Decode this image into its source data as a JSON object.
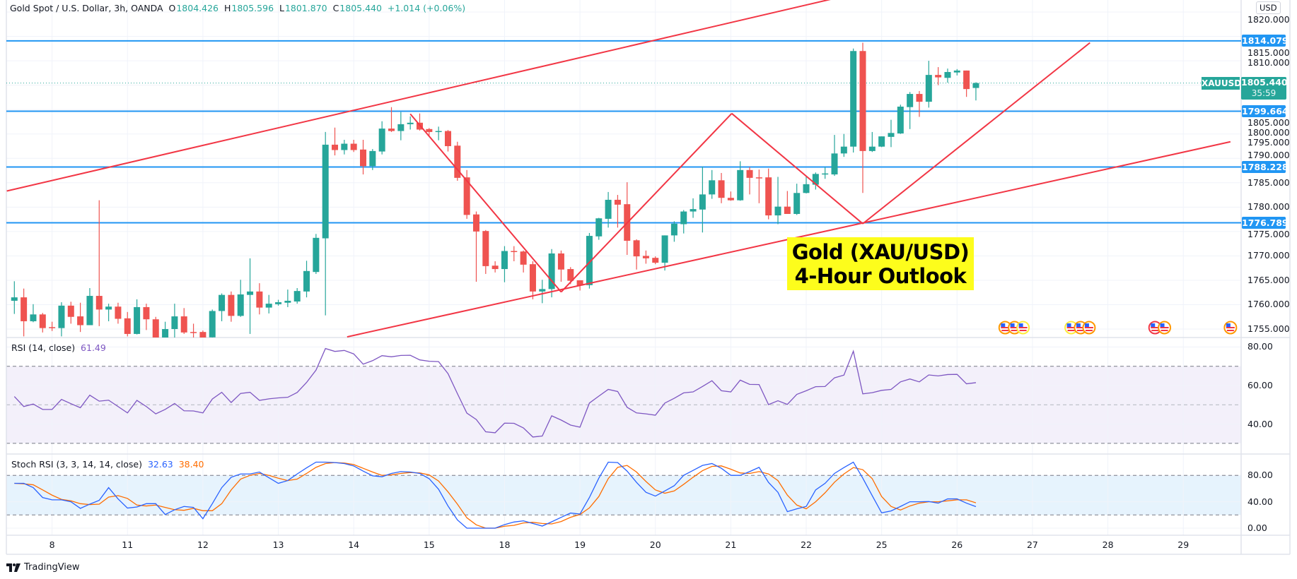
{
  "header": {
    "symbol_title": "Gold Spot / U.S. Dollar, 3h, OANDA",
    "open_label": "O",
    "open": "1804.426",
    "high_label": "H",
    "high": "1805.596",
    "low_label": "L",
    "low": "1801.870",
    "close_label": "C",
    "close": "1805.440",
    "change": "+1.014 (+0.06%)"
  },
  "colors": {
    "up": "#26a69a",
    "down": "#ef5350",
    "level_line": "#2196f3",
    "trend_line": "#f23645",
    "rsi_line": "#7e57c2",
    "stoch_k": "#2962ff",
    "stoch_d": "#ff6d00",
    "annotation_bg": "#fdfd1c"
  },
  "price_axis": {
    "currency": "USD",
    "ticks": [
      "1820.000",
      "1815.000",
      "1810.000",
      "1805.000",
      "1800.000",
      "1795.000",
      "1790.000",
      "1785.000",
      "1780.000",
      "1775.000",
      "1770.000",
      "1765.000",
      "1760.000",
      "1755.000"
    ],
    "levels": [
      "1814.079",
      "1799.664",
      "1788.228",
      "1776.789"
    ],
    "last_price": "1805.440",
    "countdown": "35:59",
    "symbol_tag": "XAUUSD"
  },
  "annotation": {
    "line1": "Gold (XAU/USD)",
    "line2": "4-Hour Outlook"
  },
  "events": [
    {
      "icon": "us-flag-icon",
      "ring": "#ff9800",
      "candle": 105.1
    },
    {
      "icon": "us-flag-icon",
      "ring": "#ff9800",
      "candle": 106.1
    },
    {
      "icon": "us-flag-icon",
      "ring": "#ffeb3b",
      "candle": 107.0
    },
    {
      "icon": "us-flag-icon",
      "ring": "#ffeb3b",
      "candle": 112.1
    },
    {
      "icon": "us-flag-icon",
      "ring": "#ff9800",
      "candle": 113.1
    },
    {
      "icon": "us-flag-icon",
      "ring": "#ff9800",
      "candle": 114.0
    },
    {
      "icon": "us-flag-icon",
      "ring": "#f23645",
      "candle": 121.0
    },
    {
      "icon": "us-flag-icon",
      "ring": "#ff9800",
      "candle": 122.0
    },
    {
      "icon": "us-flag-icon",
      "ring": "#ff9800",
      "candle": 129.0
    }
  ],
  "time_axis": {
    "ticks": [
      "8",
      "11",
      "12",
      "13",
      "14",
      "15",
      "18",
      "19",
      "20",
      "21",
      "22",
      "25",
      "26",
      "27",
      "28",
      "29"
    ]
  },
  "rsi": {
    "title": "RSI (14, close)",
    "value": "61.49",
    "ticks": [
      "80.00",
      "60.00",
      "40.00"
    ],
    "upper_band": 70,
    "middle_band": 50,
    "lower_band": 30
  },
  "stoch_rsi": {
    "title": "Stoch RSI (3, 3, 14, 14, close)",
    "k_value": "32.63",
    "d_value": "38.40",
    "ticks": [
      "80.00",
      "40.00",
      "0.00"
    ],
    "upper_band": 80,
    "lower_band": 20
  },
  "footer": {
    "brand": "TradingView"
  },
  "chart_data": [
    {
      "type": "candlestick",
      "title": "Gold Spot / U.S. Dollar, 3h, OANDA",
      "ylim": [
        1753.4,
        1821.4
      ],
      "ohlc": [
        [
          1760.8,
          1764.8,
          1758.1,
          1761.5
        ],
        [
          1761.5,
          1763.3,
          1753.5,
          1756.6
        ],
        [
          1756.6,
          1760.1,
          1756.4,
          1758.0
        ],
        [
          1758.0,
          1758.3,
          1754.3,
          1755.2
        ],
        [
          1755.4,
          1756.5,
          1754.6,
          1755.2
        ],
        [
          1755.2,
          1760.5,
          1753.5,
          1759.8
        ],
        [
          1759.8,
          1760.6,
          1756.1,
          1757.5
        ],
        [
          1757.6,
          1760.4,
          1754.4,
          1755.8
        ],
        [
          1755.8,
          1763.4,
          1755.8,
          1761.8
        ],
        [
          1761.8,
          1781.4,
          1755.6,
          1759.0
        ],
        [
          1759.0,
          1760.2,
          1756.6,
          1759.6
        ],
        [
          1759.6,
          1760.4,
          1756.1,
          1757.1
        ],
        [
          1757.2,
          1758.5,
          1753.5,
          1754.0
        ],
        [
          1754.0,
          1761.1,
          1753.9,
          1759.5
        ],
        [
          1759.5,
          1760.2,
          1754.8,
          1757.0
        ],
        [
          1757.0,
          1757.5,
          1752.5,
          1753.0
        ],
        [
          1753.2,
          1756.5,
          1752.5,
          1755.0
        ],
        [
          1755.0,
          1760.2,
          1753.0,
          1757.6
        ],
        [
          1757.6,
          1759.3,
          1754.0,
          1754.3
        ],
        [
          1754.4,
          1756.1,
          1753.0,
          1754.3
        ],
        [
          1754.4,
          1754.7,
          1752.5,
          1753.2
        ],
        [
          1753.3,
          1759.0,
          1752.8,
          1758.7
        ],
        [
          1758.7,
          1762.3,
          1756.6,
          1762.0
        ],
        [
          1762.0,
          1762.7,
          1756.5,
          1757.7
        ],
        [
          1757.7,
          1765.1,
          1757.5,
          1762.1
        ],
        [
          1762.0,
          1769.5,
          1754.0,
          1762.7
        ],
        [
          1762.7,
          1764.4,
          1758.0,
          1759.4
        ],
        [
          1759.4,
          1762.0,
          1758.2,
          1760.2
        ],
        [
          1760.1,
          1761.0,
          1759.8,
          1760.5
        ],
        [
          1760.4,
          1763.1,
          1759.5,
          1760.8
        ],
        [
          1760.65,
          1763.4,
          1760.2,
          1762.8
        ],
        [
          1762.7,
          1769.0,
          1761.5,
          1766.9
        ],
        [
          1766.7,
          1774.5,
          1766.3,
          1773.7
        ],
        [
          1773.6,
          1795.4,
          1757.8,
          1792.8
        ],
        [
          1792.8,
          1796.3,
          1790.6,
          1791.7
        ],
        [
          1791.7,
          1793.8,
          1790.8,
          1793.0
        ],
        [
          1793.0,
          1793.8,
          1791.3,
          1791.7
        ],
        [
          1791.8,
          1793.8,
          1786.7,
          1788.4
        ],
        [
          1788.4,
          1791.9,
          1787.6,
          1791.5
        ],
        [
          1791.4,
          1797.6,
          1790.8,
          1796.1
        ],
        [
          1796.1,
          1800.5,
          1795.4,
          1795.6
        ],
        [
          1795.6,
          1799.5,
          1793.7,
          1797.0
        ],
        [
          1797.0,
          1798.6,
          1795.9,
          1797.3
        ],
        [
          1797.3,
          1799.2,
          1795.7,
          1795.9
        ],
        [
          1796.0,
          1796.2,
          1794.7,
          1795.4
        ],
        [
          1795.5,
          1796.5,
          1793.7,
          1795.6
        ],
        [
          1795.6,
          1795.8,
          1791.4,
          1792.5
        ],
        [
          1792.6,
          1793.4,
          1785.4,
          1786.0
        ],
        [
          1786.1,
          1787.6,
          1777.6,
          1778.4
        ],
        [
          1778.5,
          1779.1,
          1764.7,
          1775.0
        ],
        [
          1775.1,
          1775.3,
          1766.3,
          1767.9
        ],
        [
          1768.0,
          1768.9,
          1766.6,
          1767.3
        ],
        [
          1767.3,
          1772.0,
          1764.6,
          1771.0
        ],
        [
          1771.0,
          1772.0,
          1768.9,
          1770.8
        ],
        [
          1770.9,
          1771.1,
          1766.6,
          1768.2
        ],
        [
          1768.3,
          1768.9,
          1761.1,
          1762.7
        ],
        [
          1762.7,
          1765.1,
          1760.3,
          1763.2
        ],
        [
          1763.2,
          1771.4,
          1761.5,
          1770.5
        ],
        [
          1770.5,
          1771.1,
          1764.7,
          1767.2
        ],
        [
          1767.3,
          1767.7,
          1764.2,
          1764.9
        ],
        [
          1765.0,
          1765.0,
          1762.9,
          1763.9
        ],
        [
          1764.0,
          1774.7,
          1763.3,
          1774.1
        ],
        [
          1774.0,
          1777.8,
          1773.3,
          1777.7
        ],
        [
          1777.6,
          1783.1,
          1775.8,
          1781.5
        ],
        [
          1781.5,
          1782.5,
          1775.8,
          1780.5
        ],
        [
          1780.6,
          1785.1,
          1770.2,
          1773.1
        ],
        [
          1773.2,
          1773.4,
          1767.2,
          1769.9
        ],
        [
          1770.0,
          1771.1,
          1768.4,
          1769.5
        ],
        [
          1769.6,
          1769.9,
          1768.3,
          1768.6
        ],
        [
          1768.6,
          1774.2,
          1767.0,
          1774.2
        ],
        [
          1774.2,
          1777.1,
          1772.9,
          1776.6
        ],
        [
          1776.5,
          1779.4,
          1774.6,
          1779.1
        ],
        [
          1779.1,
          1781.8,
          1777.8,
          1779.6
        ],
        [
          1779.5,
          1788.3,
          1774.8,
          1782.6
        ],
        [
          1782.6,
          1787.6,
          1781.7,
          1785.5
        ],
        [
          1785.5,
          1787.0,
          1780.8,
          1781.9
        ],
        [
          1781.9,
          1783.2,
          1781.3,
          1781.4
        ],
        [
          1781.4,
          1789.4,
          1781.3,
          1787.6
        ],
        [
          1787.6,
          1788.2,
          1782.6,
          1786.0
        ],
        [
          1786.1,
          1787.7,
          1780.8,
          1786.0
        ],
        [
          1786.1,
          1787.9,
          1777.5,
          1778.3
        ],
        [
          1778.3,
          1786.2,
          1776.5,
          1780.1
        ],
        [
          1780.1,
          1783.3,
          1778.6,
          1778.6
        ],
        [
          1778.6,
          1784.8,
          1778.4,
          1782.9
        ],
        [
          1782.9,
          1786.3,
          1782.8,
          1784.7
        ],
        [
          1784.6,
          1787.1,
          1783.6,
          1786.8
        ],
        [
          1786.8,
          1788.2,
          1785.8,
          1786.9
        ],
        [
          1786.7,
          1794.8,
          1786.4,
          1791.0
        ],
        [
          1791.0,
          1795.0,
          1790.3,
          1792.4
        ],
        [
          1792.4,
          1812.5,
          1791.2,
          1812.0
        ],
        [
          1812.0,
          1813.7,
          1782.9,
          1791.5
        ],
        [
          1791.5,
          1795.4,
          1791.3,
          1792.4
        ],
        [
          1792.4,
          1794.5,
          1792.3,
          1794.5
        ],
        [
          1794.4,
          1797.9,
          1792.3,
          1795.2
        ],
        [
          1795.1,
          1801.0,
          1795.0,
          1800.6
        ],
        [
          1800.5,
          1803.6,
          1796.0,
          1803.2
        ],
        [
          1803.2,
          1803.8,
          1798.5,
          1801.6
        ],
        [
          1801.6,
          1810.0,
          1800.4,
          1807.1
        ],
        [
          1807.1,
          1808.7,
          1805.0,
          1806.6
        ],
        [
          1806.5,
          1808.4,
          1805.5,
          1807.7
        ],
        [
          1807.6,
          1808.3,
          1807.0,
          1808.0
        ],
        [
          1808.0,
          1808.0,
          1802.6,
          1804.2
        ],
        [
          1804.426,
          1805.596,
          1801.87,
          1805.44
        ]
      ],
      "horizontal_levels": [
        1814.079,
        1799.664,
        1788.228,
        1776.789
      ],
      "trend_lines": [
        {
          "from": [
            -0.8,
            1783.3
          ],
          "to": [
            93.7,
            1825.8
          ]
        },
        {
          "from": [
            35.3,
            1753.4
          ],
          "to": [
            129.0,
            1793.4
          ]
        },
        {
          "from": [
            42.0,
            1799.1
          ],
          "to": [
            58.0,
            1762.6
          ]
        },
        {
          "from": [
            58.0,
            1762.6
          ],
          "to": [
            76.1,
            1799.2
          ]
        },
        {
          "from": [
            76.1,
            1799.2
          ],
          "to": [
            90.0,
            1776.6
          ]
        },
        {
          "from": [
            90.0,
            1776.6
          ],
          "to": [
            114.1,
            1813.7
          ]
        }
      ]
    },
    {
      "type": "line",
      "title": "RSI (14, close)",
      "ylim": [
        24,
        84
      ],
      "series": [
        {
          "name": "RSI (14, close)",
          "values": [
            54.3,
            49.1,
            50.4,
            47.6,
            47.6,
            52.8,
            50.6,
            48.5,
            55.0,
            51.9,
            52.4,
            49.1,
            45.8,
            52.3,
            49.1,
            45.3,
            47.6,
            50.7,
            46.9,
            46.8,
            45.8,
            53.0,
            56.5,
            51.2,
            55.9,
            56.5,
            52.3,
            53.1,
            53.6,
            53.9,
            56.4,
            61.6,
            68.0,
            79.2,
            77.7,
            78.2,
            76.4,
            71.1,
            72.9,
            75.5,
            74.9,
            75.6,
            75.7,
            73.3,
            72.6,
            72.4,
            66.2,
            55.8,
            45.7,
            42.4,
            36.0,
            35.5,
            40.5,
            40.4,
            38.0,
            33.3,
            33.8,
            44.3,
            42.1,
            39.5,
            38.4,
            50.9,
            54.5,
            58.0,
            56.9,
            48.7,
            45.8,
            45.3,
            44.6,
            50.9,
            53.4,
            56.2,
            56.7,
            59.5,
            62.5,
            57.3,
            56.7,
            62.8,
            60.6,
            60.5,
            50.1,
            52.1,
            50.2,
            55.4,
            57.3,
            59.4,
            59.5,
            64.0,
            65.4,
            77.8,
            55.7,
            56.3,
            57.5,
            58.0,
            61.9,
            63.4,
            61.9,
            65.5,
            65.0,
            65.7,
            65.8,
            60.9,
            61.49
          ]
        }
      ]
    },
    {
      "type": "line",
      "title": "Stoch RSI (3, 3, 14, 14, close)",
      "ylim": [
        -10,
        114
      ],
      "series": [
        {
          "name": "K",
          "values": [
            67.9,
            67.9,
            61.4,
            46.4,
            42.9,
            42.9,
            40.0,
            30.0,
            36.4,
            42.1,
            61.4,
            44.3,
            30.4,
            32.1,
            37.1,
            37.1,
            20.7,
            27.9,
            32.9,
            31.4,
            14.3,
            37.1,
            61.4,
            77.1,
            82.1,
            82.1,
            85.0,
            76.4,
            67.9,
            72.1,
            82.1,
            91.4,
            100,
            100,
            99.3,
            97.9,
            94.3,
            86.4,
            79.3,
            77.9,
            82.9,
            85.7,
            85.0,
            82.9,
            75.0,
            58.9,
            33.6,
            12.5,
            0,
            0,
            0,
            0,
            5.4,
            9.3,
            11.1,
            7.1,
            3.2,
            9.6,
            16.4,
            22.9,
            21.4,
            46.4,
            75.7,
            100,
            99.3,
            86.4,
            69.3,
            54.3,
            48.6,
            56.4,
            64.3,
            80.0,
            87.5,
            95.0,
            97.9,
            90.7,
            80.0,
            80.0,
            85.7,
            92.1,
            69.3,
            54.3,
            25.0,
            29.3,
            32.9,
            57.9,
            67.9,
            82.9,
            91.8,
            100,
            75.7,
            49.3,
            23.2,
            26.1,
            32.9,
            40.0,
            40.0,
            40.4,
            37.9,
            44.3,
            44.3,
            37.9,
            32.63
          ]
        },
        {
          "name": "D",
          "values": [
            67.9,
            67.1,
            65.7,
            57.9,
            50.0,
            43.6,
            41.4,
            37.1,
            35.7,
            36.4,
            47.1,
            49.3,
            45.0,
            35.0,
            33.6,
            35.0,
            31.4,
            27.9,
            27.1,
            30.0,
            26.4,
            26.4,
            37.1,
            57.9,
            74.3,
            80.0,
            82.9,
            80.0,
            75.7,
            72.1,
            74.3,
            82.9,
            92.1,
            97.9,
            99.3,
            98.6,
            96.4,
            90.7,
            85.0,
            80.0,
            80.7,
            82.9,
            84.3,
            83.6,
            80.7,
            71.4,
            55.0,
            36.4,
            15.7,
            5.0,
            0,
            0,
            2.9,
            4.3,
            7.9,
            8.9,
            7.1,
            6.4,
            10.0,
            16.4,
            20.7,
            30.7,
            47.9,
            75.0,
            92.1,
            95.0,
            85.0,
            70.7,
            57.9,
            52.9,
            56.4,
            66.4,
            77.1,
            87.1,
            93.6,
            94.3,
            89.3,
            83.6,
            82.9,
            85.7,
            82.1,
            72.1,
            50.0,
            35.0,
            29.3,
            40.0,
            53.6,
            69.6,
            82.1,
            91.8,
            88.6,
            75.0,
            47.9,
            32.9,
            27.5,
            33.6,
            37.9,
            40.0,
            40.0,
            41.4,
            42.9,
            42.9,
            38.4
          ]
        }
      ]
    }
  ]
}
